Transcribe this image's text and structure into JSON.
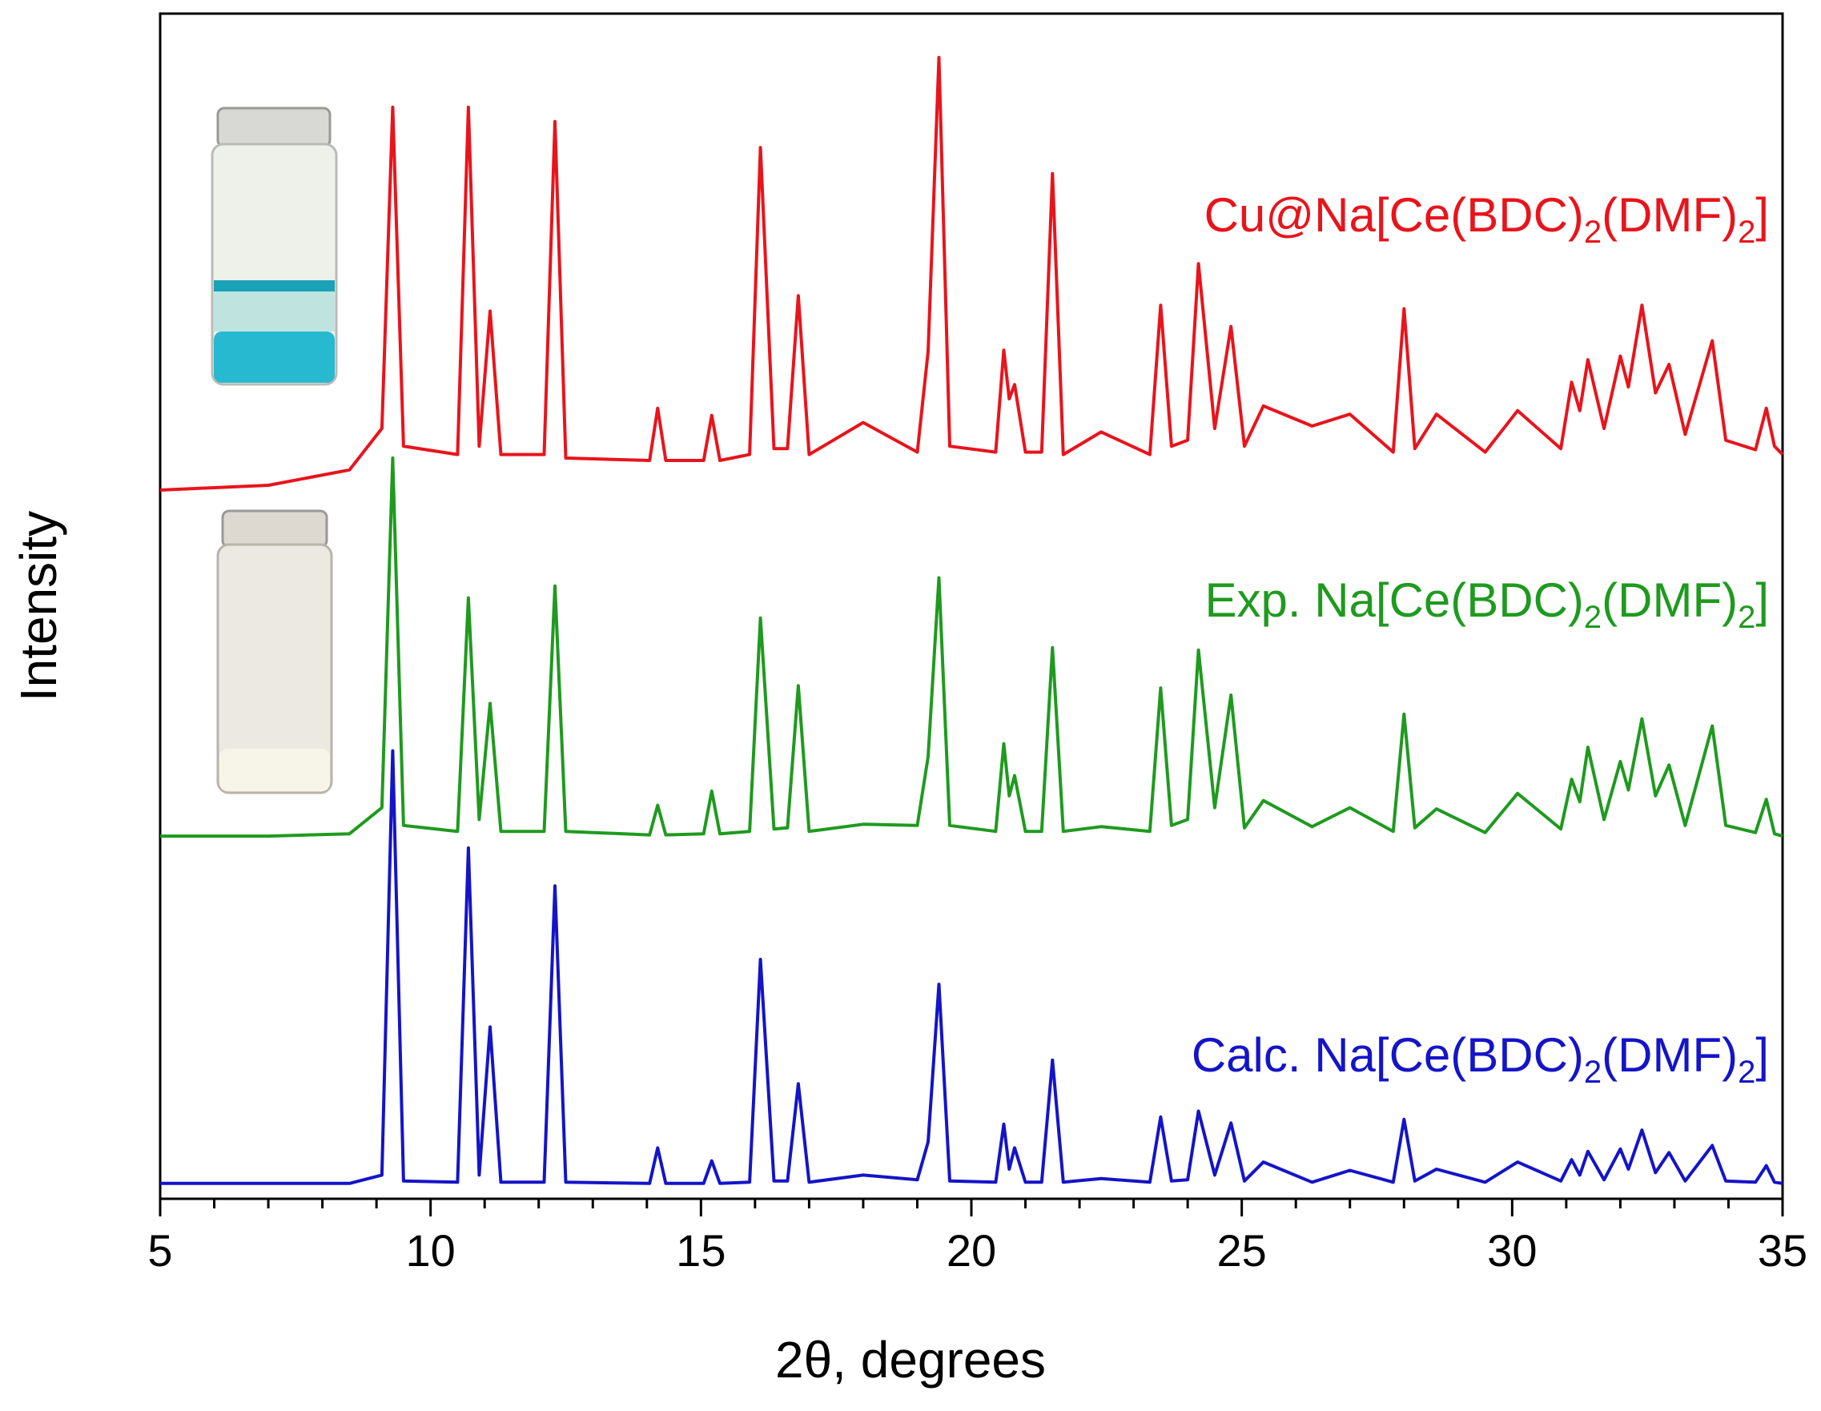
{
  "chart_data": {
    "type": "line",
    "xlabel": "2θ, degrees",
    "ylabel": "Intensity",
    "xlim": [
      5,
      35
    ],
    "ylim": [
      0,
      100
    ],
    "xticks": [
      5,
      10,
      15,
      20,
      25,
      30,
      35
    ],
    "xminorticks": [
      6,
      7,
      8,
      9,
      11,
      12,
      13,
      14,
      16,
      17,
      18,
      19,
      21,
      22,
      23,
      24,
      26,
      27,
      28,
      29,
      31,
      32,
      33,
      34
    ],
    "x": [
      5,
      7,
      8.5,
      9.1,
      9.3,
      9.5,
      10.5,
      10.7,
      10.9,
      11.1,
      11.3,
      12.1,
      12.3,
      12.5,
      14.05,
      14.2,
      14.35,
      15.05,
      15.2,
      15.35,
      15.9,
      16.1,
      16.35,
      16.6,
      16.8,
      17.0,
      18.0,
      19.0,
      19.2,
      19.4,
      19.6,
      20.45,
      20.6,
      20.7,
      20.8,
      21.0,
      21.3,
      21.5,
      21.7,
      22.4,
      23.3,
      23.5,
      23.7,
      24.0,
      24.2,
      24.5,
      24.8,
      25.05,
      25.4,
      26.3,
      27.0,
      27.8,
      28.0,
      28.2,
      28.6,
      29.5,
      30.1,
      30.9,
      31.1,
      31.25,
      31.4,
      31.7,
      32.0,
      32.15,
      32.4,
      32.65,
      32.9,
      33.2,
      33.7,
      33.95,
      34.5,
      34.7,
      34.85,
      35
    ],
    "series": [
      {
        "name": "Cu@Na[Ce(BDC)2(DMF)2]",
        "color": "#e8141c",
        "values": [
          59.8,
          60.2,
          61.5,
          65,
          92.1,
          63.5,
          62.8,
          92.1,
          63.5,
          74.9,
          62.8,
          62.8,
          90.9,
          62.5,
          62.3,
          66.7,
          62.3,
          62.3,
          66.1,
          62.3,
          62.8,
          88.7,
          63.3,
          63.3,
          76.2,
          62.8,
          65.5,
          63,
          71.5,
          96.3,
          63.5,
          63,
          71.6,
          67.5,
          68.7,
          63,
          63,
          86.5,
          62.8,
          64.7,
          62.8,
          75.4,
          63.5,
          64,
          78.9,
          65,
          73.6,
          63.5,
          66.9,
          65.2,
          66.2,
          63,
          75.1,
          63.3,
          66.2,
          63,
          66.5,
          63.3,
          68.9,
          66.5,
          70.8,
          65,
          71.1,
          68.5,
          75.4,
          68,
          70.4,
          64.5,
          72.4,
          64,
          63.2,
          66.7,
          63.5,
          62.8
        ]
      },
      {
        "name": "Exp. Na[Ce(BDC)2(DMF)2]",
        "color": "#1f9a1f",
        "values": [
          30.6,
          30.6,
          30.8,
          33,
          62.5,
          31.5,
          31,
          50.7,
          32,
          41.8,
          31,
          31,
          51.7,
          31,
          30.7,
          33.2,
          30.7,
          30.8,
          34.4,
          30.8,
          31,
          49.0,
          31.2,
          31.3,
          43.3,
          31,
          31.6,
          31.5,
          37.3,
          52.4,
          31.5,
          31,
          38.4,
          34,
          35.7,
          31,
          31,
          46.5,
          31,
          31.4,
          31,
          43.1,
          31.5,
          32,
          46.3,
          33,
          42.5,
          31.3,
          33.6,
          31.4,
          33.0,
          31,
          40.9,
          31.3,
          32.9,
          30.9,
          34.2,
          31.2,
          35.4,
          33.5,
          38.1,
          32,
          36.9,
          34.5,
          40.5,
          34,
          36.6,
          31.5,
          39.9,
          31.5,
          30.9,
          33.7,
          30.8,
          30.6
        ]
      },
      {
        "name": "Calc. Na[Ce(BDC)2(DMF)2]",
        "color": "#1414c8",
        "values": [
          1.3,
          1.3,
          1.3,
          2,
          37.8,
          1.5,
          1.4,
          29.6,
          2,
          14.5,
          1.4,
          1.4,
          26.4,
          1.4,
          1.3,
          4.3,
          1.3,
          1.3,
          3.2,
          1.3,
          1.4,
          20.2,
          1.5,
          1.5,
          9.7,
          1.4,
          2.0,
          1.6,
          4.8,
          18.1,
          1.5,
          1.4,
          6.3,
          2.5,
          4.3,
          1.4,
          1.4,
          11.7,
          1.4,
          1.7,
          1.4,
          6.9,
          1.5,
          1.6,
          7.4,
          2,
          6.4,
          1.5,
          3.1,
          1.4,
          2.4,
          1.4,
          6.7,
          1.5,
          2.5,
          1.4,
          3.1,
          1.5,
          3.3,
          2,
          4.0,
          1.6,
          4.2,
          2.5,
          5.8,
          2.2,
          3.9,
          1.5,
          4.5,
          1.5,
          1.4,
          2.8,
          1.4,
          1.3
        ]
      }
    ]
  }
}
